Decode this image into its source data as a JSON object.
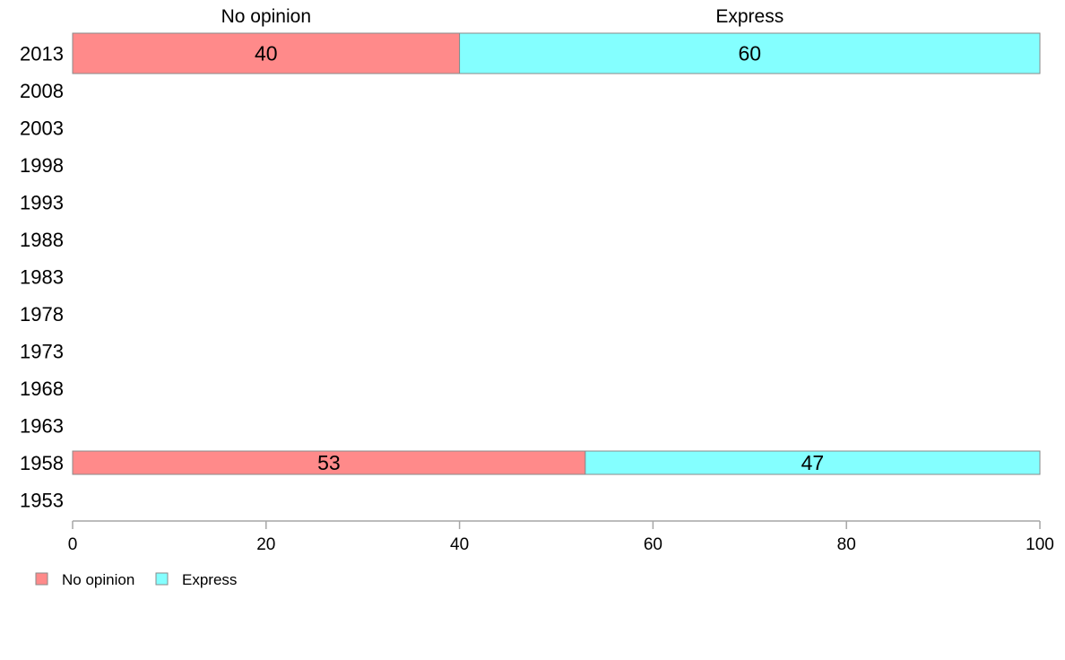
{
  "chart_data": {
    "type": "bar",
    "orientation": "horizontal",
    "stacked": true,
    "categories": [
      "2013",
      "2008",
      "2003",
      "1998",
      "1993",
      "1988",
      "1983",
      "1978",
      "1973",
      "1968",
      "1963",
      "1958",
      "1953"
    ],
    "series": [
      {
        "name": "No opinion",
        "color": "#ff8a8a",
        "values": [
          40,
          null,
          null,
          null,
          null,
          null,
          null,
          null,
          null,
          null,
          null,
          53,
          null
        ]
      },
      {
        "name": "Express",
        "color": "#84ffff",
        "values": [
          60,
          null,
          null,
          null,
          null,
          null,
          null,
          null,
          null,
          null,
          null,
          47,
          null
        ]
      }
    ],
    "top_labels": [
      "No opinion",
      "Express"
    ],
    "xlim": [
      0,
      100
    ],
    "x_ticks": [
      "0",
      "20",
      "40",
      "60",
      "80",
      "100"
    ],
    "title": "",
    "xlabel": "",
    "ylabel": "",
    "grid": false,
    "legend": {
      "position": "bottom-left",
      "entries": [
        "No opinion",
        "Express"
      ]
    }
  }
}
